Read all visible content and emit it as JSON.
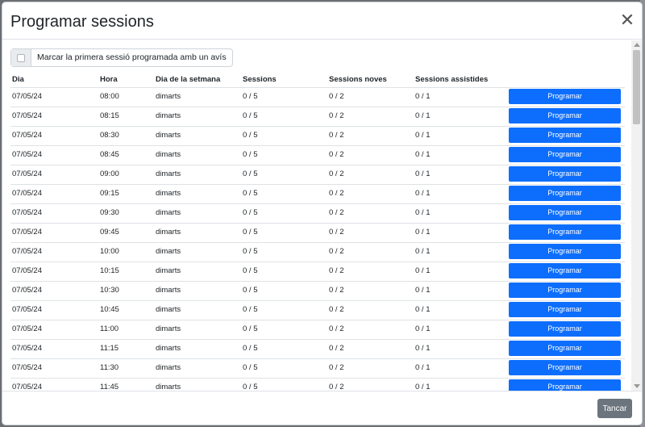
{
  "modal": {
    "title": "Programar sessions",
    "close_icon": "close-icon",
    "checkbox_label": "Marcar la primera sessió programada amb un avís",
    "cancel_label": "Tancar"
  },
  "table": {
    "headers": [
      "Dia",
      "Hora",
      "Dia de la setmana",
      "Sessions",
      "Sessions noves",
      "Sessions assistides",
      ""
    ],
    "button_label": "Programar",
    "rows": [
      {
        "dia": "07/05/24",
        "hora": "08:00",
        "setmana": "dimarts",
        "sessions": "0 / 5",
        "noves": "0 / 2",
        "assistides": "0 / 1"
      },
      {
        "dia": "07/05/24",
        "hora": "08:15",
        "setmana": "dimarts",
        "sessions": "0 / 5",
        "noves": "0 / 2",
        "assistides": "0 / 1"
      },
      {
        "dia": "07/05/24",
        "hora": "08:30",
        "setmana": "dimarts",
        "sessions": "0 / 5",
        "noves": "0 / 2",
        "assistides": "0 / 1"
      },
      {
        "dia": "07/05/24",
        "hora": "08:45",
        "setmana": "dimarts",
        "sessions": "0 / 5",
        "noves": "0 / 2",
        "assistides": "0 / 1"
      },
      {
        "dia": "07/05/24",
        "hora": "09:00",
        "setmana": "dimarts",
        "sessions": "0 / 5",
        "noves": "0 / 2",
        "assistides": "0 / 1"
      },
      {
        "dia": "07/05/24",
        "hora": "09:15",
        "setmana": "dimarts",
        "sessions": "0 / 5",
        "noves": "0 / 2",
        "assistides": "0 / 1"
      },
      {
        "dia": "07/05/24",
        "hora": "09:30",
        "setmana": "dimarts",
        "sessions": "0 / 5",
        "noves": "0 / 2",
        "assistides": "0 / 1"
      },
      {
        "dia": "07/05/24",
        "hora": "09:45",
        "setmana": "dimarts",
        "sessions": "0 / 5",
        "noves": "0 / 2",
        "assistides": "0 / 1"
      },
      {
        "dia": "07/05/24",
        "hora": "10:00",
        "setmana": "dimarts",
        "sessions": "0 / 5",
        "noves": "0 / 2",
        "assistides": "0 / 1"
      },
      {
        "dia": "07/05/24",
        "hora": "10:15",
        "setmana": "dimarts",
        "sessions": "0 / 5",
        "noves": "0 / 2",
        "assistides": "0 / 1"
      },
      {
        "dia": "07/05/24",
        "hora": "10:30",
        "setmana": "dimarts",
        "sessions": "0 / 5",
        "noves": "0 / 2",
        "assistides": "0 / 1"
      },
      {
        "dia": "07/05/24",
        "hora": "10:45",
        "setmana": "dimarts",
        "sessions": "0 / 5",
        "noves": "0 / 2",
        "assistides": "0 / 1"
      },
      {
        "dia": "07/05/24",
        "hora": "11:00",
        "setmana": "dimarts",
        "sessions": "0 / 5",
        "noves": "0 / 2",
        "assistides": "0 / 1"
      },
      {
        "dia": "07/05/24",
        "hora": "11:15",
        "setmana": "dimarts",
        "sessions": "0 / 5",
        "noves": "0 / 2",
        "assistides": "0 / 1"
      },
      {
        "dia": "07/05/24",
        "hora": "11:30",
        "setmana": "dimarts",
        "sessions": "0 / 5",
        "noves": "0 / 2",
        "assistides": "0 / 1"
      },
      {
        "dia": "07/05/24",
        "hora": "11:45",
        "setmana": "dimarts",
        "sessions": "0 / 5",
        "noves": "0 / 2",
        "assistides": "0 / 1"
      }
    ]
  },
  "colors": {
    "primary_button": "#0d6efd",
    "secondary_button": "#6c757d"
  }
}
